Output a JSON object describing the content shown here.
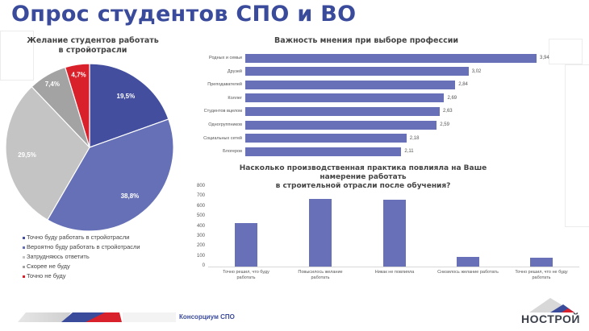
{
  "header": {
    "title": "Опрос студентов СПО и ВО"
  },
  "footer": {
    "label": "Консорциум СПО",
    "logo_text": "НОСТРОЙ"
  },
  "colors": {
    "accent": "#3b4b9c",
    "bar": "#6870b8",
    "red": "#d9212c"
  },
  "chart_data": [
    {
      "type": "pie",
      "title": "Желание студентов работать в стройотрасли",
      "categories": [
        "Точно буду работать в стройотрасли",
        "Вероятно буду работать в стройотрасли",
        "Затрудняюсь ответить",
        "Скорее не буду",
        "Точно не буду"
      ],
      "values": [
        19.5,
        38.8,
        29.5,
        7.4,
        4.7
      ],
      "labels": [
        "19,5%",
        "38,8%",
        "29,5%",
        "7,4%",
        "4,7%"
      ],
      "colors": [
        "#434f9e",
        "#6670b6",
        "#c4c4c4",
        "#a3a3a3",
        "#d9212c"
      ],
      "legend_position": "bottom"
    },
    {
      "type": "bar",
      "orientation": "horizontal",
      "title": "Важность мнения при выборе профессии",
      "categories": [
        "Родных и семьи",
        "Друзей",
        "Преподавателей",
        "Коллег",
        "Студентов вцелом",
        "Одногруппников",
        "Социальных сетей",
        "Блогеров"
      ],
      "values": [
        3.94,
        3.02,
        2.84,
        2.69,
        2.63,
        2.59,
        2.18,
        2.11
      ],
      "labels": [
        "3,94",
        "3,02",
        "2,84",
        "2,69",
        "2,63",
        "2,59",
        "2,18",
        "2,11"
      ],
      "grid": false
    },
    {
      "type": "bar",
      "title": "Насколько производственная практика повлияла на Ваше намерение работать в строительной отрасли после обучения?",
      "title_lines": [
        "Насколько производственная практика повлияла на Ваше намерение работать",
        "в строительной отрасли после обучения?"
      ],
      "categories": [
        "Точно решил, что буду работать",
        "Повысилось желание работать",
        "Никак не повлияла",
        "Снизилось желание работать",
        "Точно решил, что не буду работать"
      ],
      "category_lines": [
        [
          "Точно решил, что буду",
          "работать"
        ],
        [
          "Повысилось желание",
          "работать"
        ],
        [
          "Никак не повлияла",
          ""
        ],
        [
          "Снизилось желание работать",
          ""
        ],
        [
          "Точно решил, что не буду",
          "работать"
        ]
      ],
      "values": [
        435,
        677,
        670,
        95,
        90
      ],
      "yticks": [
        "800",
        "700",
        "600",
        "500",
        "400",
        "300",
        "200",
        "100",
        "0"
      ],
      "ylim": [
        0,
        800
      ],
      "grid": false
    }
  ]
}
